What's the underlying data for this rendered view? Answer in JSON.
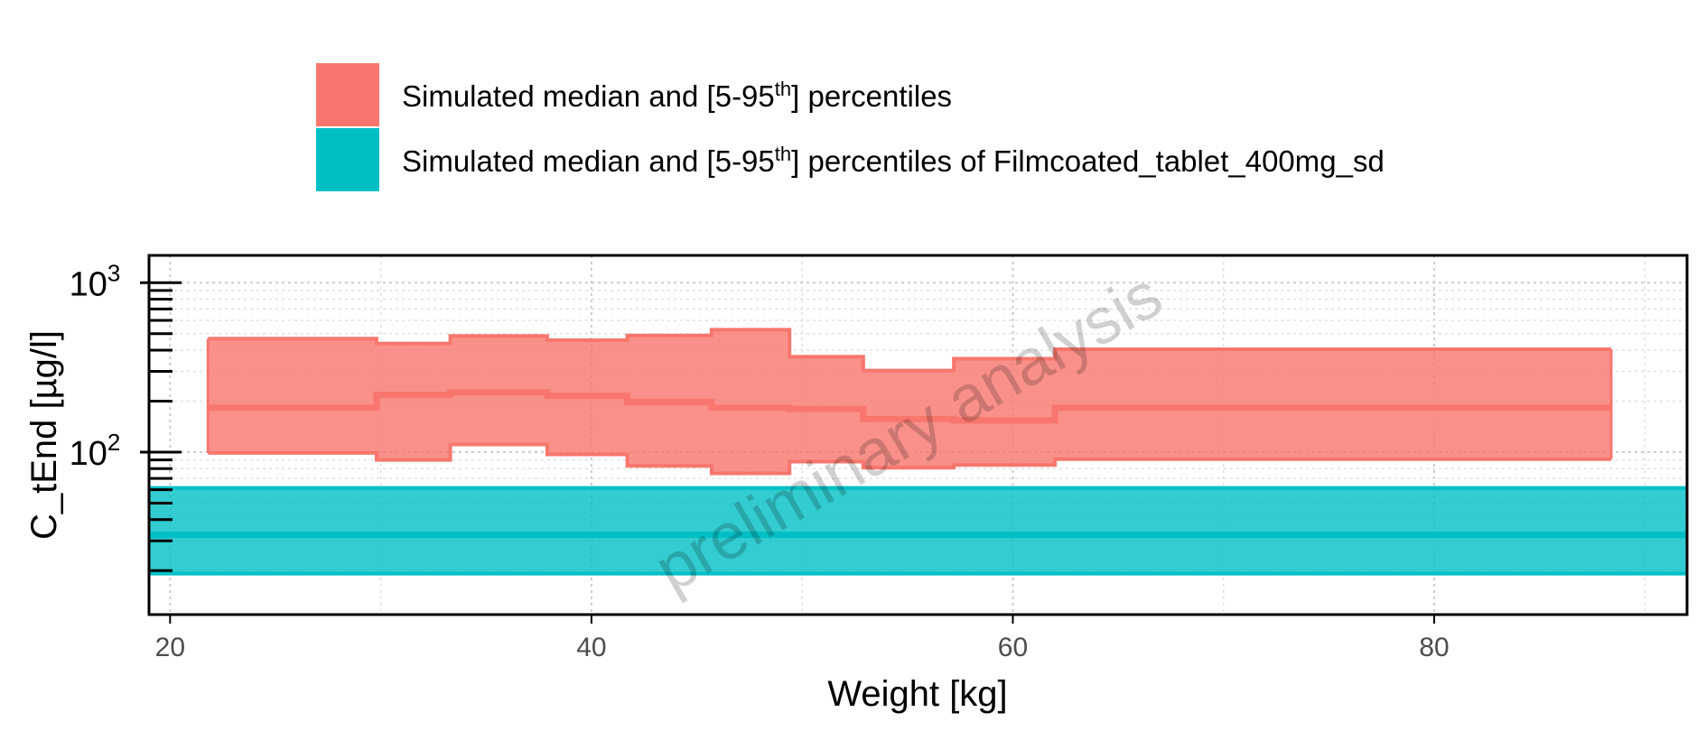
{
  "chart_data": {
    "type": "area",
    "xlabel": "Weight [kg]",
    "ylabel": "C_tEnd [µg/l]",
    "xlim": [
      19,
      92
    ],
    "ylim": [
      11,
      1450
    ],
    "yscale": "log",
    "x_ticks": [
      "20",
      "40",
      "60",
      "80"
    ],
    "y_ticks": [
      {
        "base": "10",
        "exp": "2",
        "value": 100
      },
      {
        "base": "10",
        "exp": "3",
        "value": 1000
      }
    ],
    "watermark": "preliminary analysis",
    "grid": true,
    "legend_position": "top",
    "legend": [
      {
        "pre": "Simulated median and [5-95",
        "sup": "th",
        "post": "] percentiles",
        "color": "#F8766D"
      },
      {
        "pre": "Simulated median and [5-95",
        "sup": "th",
        "post": "] percentiles of Filmcoated_tablet_400mg_sd",
        "color": "#00BFC4"
      }
    ],
    "series": [
      {
        "name": "Simulated median and [5-95th] percentiles",
        "color": "#F8766D",
        "step": true,
        "bins": [
          {
            "x0": 21.8,
            "x1": 29.8,
            "p5": 99,
            "median": 183,
            "p95": 468
          },
          {
            "x0": 29.8,
            "x1": 33.3,
            "p5": 90,
            "median": 218,
            "p95": 438
          },
          {
            "x0": 33.3,
            "x1": 37.9,
            "p5": 111,
            "median": 225,
            "p95": 485
          },
          {
            "x0": 37.9,
            "x1": 41.7,
            "p5": 97,
            "median": 215,
            "p95": 458
          },
          {
            "x0": 41.7,
            "x1": 45.7,
            "p5": 83,
            "median": 198,
            "p95": 488
          },
          {
            "x0": 45.7,
            "x1": 49.4,
            "p5": 75,
            "median": 183,
            "p95": 528
          },
          {
            "x0": 49.4,
            "x1": 52.9,
            "p5": 88,
            "median": 180,
            "p95": 366
          },
          {
            "x0": 52.9,
            "x1": 57.2,
            "p5": 81,
            "median": 157,
            "p95": 303
          },
          {
            "x0": 57.2,
            "x1": 62.0,
            "p5": 84,
            "median": 154,
            "p95": 356
          },
          {
            "x0": 62.0,
            "x1": 88.4,
            "p5": 91,
            "median": 183,
            "p95": 405
          }
        ]
      },
      {
        "name": "Simulated median and [5-95th] percentiles of Filmcoated_tablet_400mg_sd",
        "color": "#00BFC4",
        "x": [
          19,
          92
        ],
        "p5": 19.2,
        "median": 32.5,
        "p95": 61.5
      }
    ]
  }
}
